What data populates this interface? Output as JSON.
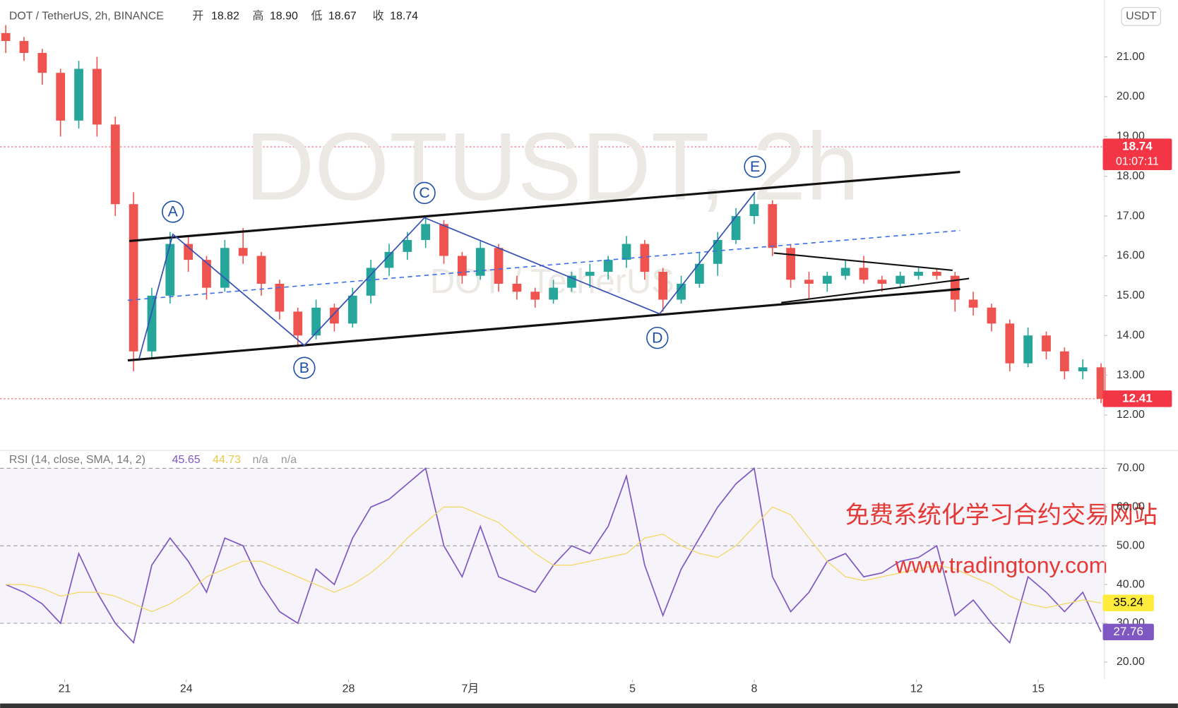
{
  "header": {
    "symbol": "DOT / TetherUS, 2h, BINANCE",
    "open_label": "开",
    "open": "18.82",
    "high_label": "高",
    "high": "18.90",
    "low_label": "低",
    "low": "18.67",
    "close_label": "收",
    "close": "18.74",
    "currency": "USDT"
  },
  "annotations": {
    "watermark": "DOTUSDT, 2h",
    "watermark_sub": "DOT / TetherUS",
    "waves": [
      "A",
      "B",
      "C",
      "D",
      "E"
    ],
    "promo": "免费系统化学习合约交易网站",
    "url": "www.tradingtony.com"
  },
  "chart_data": [
    {
      "type": "candlestick",
      "x": [
        -1.45,
        -1.0,
        -0.55,
        -0.1,
        0.35,
        0.8,
        1.25,
        1.7,
        2.15,
        2.6,
        3.05,
        3.5,
        3.95,
        4.4,
        4.85,
        5.3,
        5.75,
        6.2,
        6.65,
        7.1,
        7.55,
        8.0,
        8.45,
        8.9,
        9.35,
        9.8,
        10.25,
        10.7,
        11.15,
        11.6,
        12.05,
        12.5,
        12.95,
        13.4,
        13.85,
        14.3,
        14.75,
        15.2,
        15.65,
        16.1,
        16.55,
        17.0,
        17.45,
        17.9,
        18.35,
        18.8,
        19.25,
        19.7,
        20.15,
        20.6,
        21.05,
        21.5,
        21.95,
        22.4,
        22.85,
        23.3,
        23.75,
        24.2,
        24.65,
        25.1,
        25.55
      ],
      "open": [
        21.6,
        21.4,
        21.1,
        20.6,
        19.4,
        20.7,
        19.3,
        17.3,
        13.6,
        15.0,
        16.3,
        15.9,
        15.2,
        16.2,
        16.0,
        15.3,
        14.6,
        14.0,
        14.7,
        14.3,
        15.0,
        15.7,
        16.1,
        16.4,
        16.8,
        16.0,
        15.5,
        16.2,
        15.3,
        15.1,
        14.9,
        15.2,
        15.5,
        15.6,
        15.9,
        16.3,
        15.6,
        14.9,
        15.3,
        15.8,
        16.4,
        17.0,
        17.3,
        16.2,
        15.4,
        15.3,
        15.5,
        15.7,
        15.4,
        15.3,
        15.5,
        15.6,
        15.5,
        14.9,
        14.7,
        14.3,
        13.3,
        14.0,
        13.6,
        13.1,
        13.2
      ],
      "high": [
        21.8,
        21.5,
        21.2,
        20.7,
        20.9,
        21.0,
        19.5,
        17.6,
        15.2,
        16.6,
        16.5,
        16.0,
        16.4,
        16.7,
        16.1,
        15.4,
        14.7,
        14.9,
        14.8,
        15.2,
        15.9,
        16.3,
        16.6,
        17.0,
        16.9,
        16.1,
        16.4,
        16.3,
        15.5,
        15.2,
        15.4,
        15.6,
        15.8,
        16.0,
        16.5,
        16.4,
        15.7,
        15.5,
        16.1,
        16.6,
        17.2,
        17.6,
        17.4,
        16.3,
        15.6,
        15.6,
        15.9,
        16.0,
        15.5,
        15.6,
        15.7,
        15.7,
        15.6,
        15.1,
        14.8,
        14.4,
        14.2,
        14.1,
        13.7,
        13.4,
        13.3
      ],
      "low": [
        21.1,
        20.9,
        20.3,
        19.0,
        19.2,
        19.0,
        17.0,
        13.1,
        13.4,
        14.8,
        15.6,
        14.9,
        15.1,
        15.8,
        15.0,
        14.4,
        13.7,
        13.9,
        14.1,
        14.2,
        14.8,
        15.5,
        15.9,
        16.2,
        15.8,
        15.3,
        15.4,
        15.1,
        14.9,
        14.7,
        14.8,
        15.1,
        15.2,
        15.4,
        15.7,
        15.4,
        14.6,
        14.8,
        15.2,
        15.5,
        16.3,
        16.8,
        16.0,
        15.2,
        14.9,
        15.1,
        15.4,
        15.3,
        15.1,
        15.2,
        15.4,
        15.4,
        14.6,
        14.5,
        14.1,
        13.1,
        13.2,
        13.4,
        12.9,
        12.9,
        12.3
      ],
      "close": [
        21.4,
        21.1,
        20.6,
        19.4,
        20.7,
        19.3,
        17.3,
        13.6,
        15.0,
        16.3,
        15.9,
        15.2,
        16.2,
        16.0,
        15.3,
        14.6,
        14.0,
        14.7,
        14.3,
        15.0,
        15.7,
        16.1,
        16.4,
        16.8,
        16.0,
        15.5,
        16.2,
        15.3,
        15.1,
        14.9,
        15.2,
        15.5,
        15.6,
        15.9,
        16.3,
        15.6,
        14.9,
        15.3,
        15.8,
        16.4,
        17.0,
        17.3,
        16.2,
        15.4,
        15.3,
        15.5,
        15.7,
        15.4,
        15.3,
        15.5,
        15.6,
        15.5,
        14.9,
        14.7,
        14.3,
        13.3,
        14.0,
        13.6,
        13.1,
        13.2,
        12.41
      ],
      "up_color": "#26a69a",
      "down_color": "#ef5350",
      "xlim": [
        -1.59,
        25.63
      ],
      "xticks": [
        {
          "value": 0,
          "label": "21"
        },
        {
          "value": 3,
          "label": "24"
        },
        {
          "value": 7,
          "label": "28"
        },
        {
          "value": 10,
          "label": "7月"
        },
        {
          "value": 14,
          "label": "5"
        },
        {
          "value": 17,
          "label": "8"
        },
        {
          "value": 21,
          "label": "12"
        },
        {
          "value": 24,
          "label": "15"
        }
      ],
      "ylim": [
        11.11,
        22.43
      ],
      "yticks": [
        {
          "value": 12,
          "label": "12.00"
        },
        {
          "value": 13,
          "label": "13.00"
        },
        {
          "value": 14,
          "label": "14.00"
        },
        {
          "value": 15,
          "label": "15.00"
        },
        {
          "value": 16,
          "label": "16.00"
        },
        {
          "value": 17,
          "label": "17.00"
        },
        {
          "value": 18,
          "label": "18.00"
        },
        {
          "value": 19,
          "label": "19.00"
        },
        {
          "value": 20,
          "label": "20.00"
        },
        {
          "value": 21,
          "label": "21.00"
        }
      ],
      "price_lines": [
        {
          "value": 18.74,
          "label": "18.74",
          "sub": "01:07:11",
          "color": "#f23645"
        },
        {
          "value": 12.41,
          "label": "12.41",
          "color": "#f23645"
        }
      ]
    },
    {
      "type": "line",
      "title": "RSI (14, close, SMA, 14, 2)",
      "legend_values": [
        "45.65",
        "44.73",
        "n/a",
        "n/a"
      ],
      "x": [
        -1.45,
        -1.0,
        -0.55,
        -0.1,
        0.35,
        0.8,
        1.25,
        1.7,
        2.15,
        2.6,
        3.05,
        3.5,
        3.95,
        4.4,
        4.85,
        5.3,
        5.75,
        6.2,
        6.65,
        7.1,
        7.55,
        8.0,
        8.45,
        8.9,
        9.35,
        9.8,
        10.25,
        10.7,
        11.15,
        11.6,
        12.05,
        12.5,
        12.95,
        13.4,
        13.85,
        14.3,
        14.75,
        15.2,
        15.65,
        16.1,
        16.55,
        17.0,
        17.45,
        17.9,
        18.35,
        18.8,
        19.25,
        19.7,
        20.15,
        20.6,
        21.05,
        21.5,
        21.95,
        22.4,
        22.85,
        23.3,
        23.75,
        24.2,
        24.65,
        25.1,
        25.55
      ],
      "series": [
        {
          "color": "#7e57c2",
          "last_label": "27.76",
          "label_text_color": "#ffffff",
          "values": [
            40,
            38,
            35,
            30,
            48,
            38,
            30,
            25,
            45,
            52,
            46,
            38,
            52,
            50,
            40,
            33,
            30,
            44,
            40,
            52,
            60,
            62,
            66,
            70,
            50,
            42,
            55,
            42,
            40,
            38,
            45,
            50,
            48,
            55,
            68,
            45,
            32,
            44,
            52,
            60,
            66,
            70,
            42,
            33,
            38,
            46,
            48,
            42,
            43,
            46,
            47,
            50,
            32,
            36,
            30,
            25,
            42,
            38,
            33,
            38,
            27.76
          ]
        },
        {
          "color": "#f2d864",
          "last_label": "35.24",
          "label_color": "#ffeb3b",
          "label_text_color": "#000000",
          "values": [
            40,
            40,
            39,
            37,
            38,
            38,
            37,
            35,
            33,
            35,
            38,
            42,
            44,
            46,
            46,
            44,
            42,
            40,
            38,
            40,
            43,
            47,
            52,
            56,
            60,
            60,
            58,
            56,
            52,
            48,
            45,
            45,
            46,
            47,
            48,
            52,
            53,
            50,
            48,
            47,
            50,
            55,
            60,
            58,
            52,
            46,
            42,
            41,
            42,
            43,
            44,
            45,
            44,
            42,
            40,
            37,
            35,
            34,
            35,
            36,
            35.24
          ]
        }
      ],
      "xlim": [
        -1.59,
        25.63
      ],
      "ylim": [
        15.5,
        74.6
      ],
      "yticks": [
        {
          "value": 20,
          "label": "20.00"
        },
        {
          "value": 30,
          "label": "30.00"
        },
        {
          "value": 40,
          "label": "40.00"
        },
        {
          "value": 50,
          "label": "50.00"
        },
        {
          "value": 60,
          "label": "60.00"
        },
        {
          "value": 70,
          "label": "70.00"
        }
      ],
      "band": [
        30,
        70
      ],
      "levels": [
        70,
        50,
        30
      ]
    }
  ]
}
